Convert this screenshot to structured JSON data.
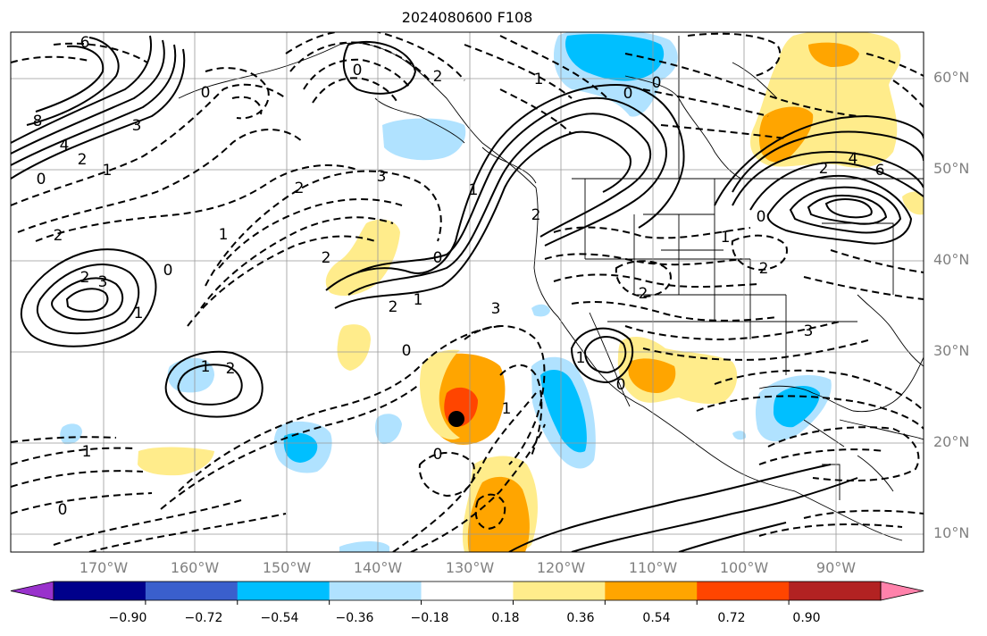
{
  "title": "2024080600 F108",
  "lat_labels": [
    "60°N",
    "50°N",
    "40°N",
    "30°N",
    "20°N",
    "10°N"
  ],
  "lon_labels": [
    "170°W",
    "160°W",
    "150°W",
    "140°W",
    "130°W",
    "120°W",
    "110°W",
    "100°W",
    "90°W"
  ],
  "colorbar": {
    "tick_labels": [
      "−0.90",
      "−0.72",
      "−0.54",
      "−0.36",
      "−0.18",
      "0.18",
      "0.36",
      "0.54",
      "0.72",
      "0.90"
    ],
    "colors": [
      "#9932cc",
      "#00008b",
      "#3a5fcd",
      "#00bfff",
      "#b0e2ff",
      "#ffffff",
      "#ffec8b",
      "#ffa500",
      "#ff4500",
      "#b22222",
      "#ff82ab"
    ]
  },
  "contour_labels": [
    "6",
    "8",
    "4",
    "2",
    "0",
    "3",
    "2",
    "1",
    "0",
    "0",
    "3",
    "2",
    "1",
    "2",
    "3",
    "2",
    "0",
    "2",
    "1",
    "0",
    "2",
    "1",
    "3",
    "6",
    "4",
    "2",
    "0",
    "1",
    "2",
    "2",
    "3",
    "1",
    "0",
    "2",
    "1",
    "1",
    "0",
    "0",
    "1",
    "2",
    "1",
    "0",
    "0",
    "1",
    "0"
  ],
  "storm_marker": {
    "lat": 22.5,
    "lon": -131.5,
    "color": "#000000"
  }
}
